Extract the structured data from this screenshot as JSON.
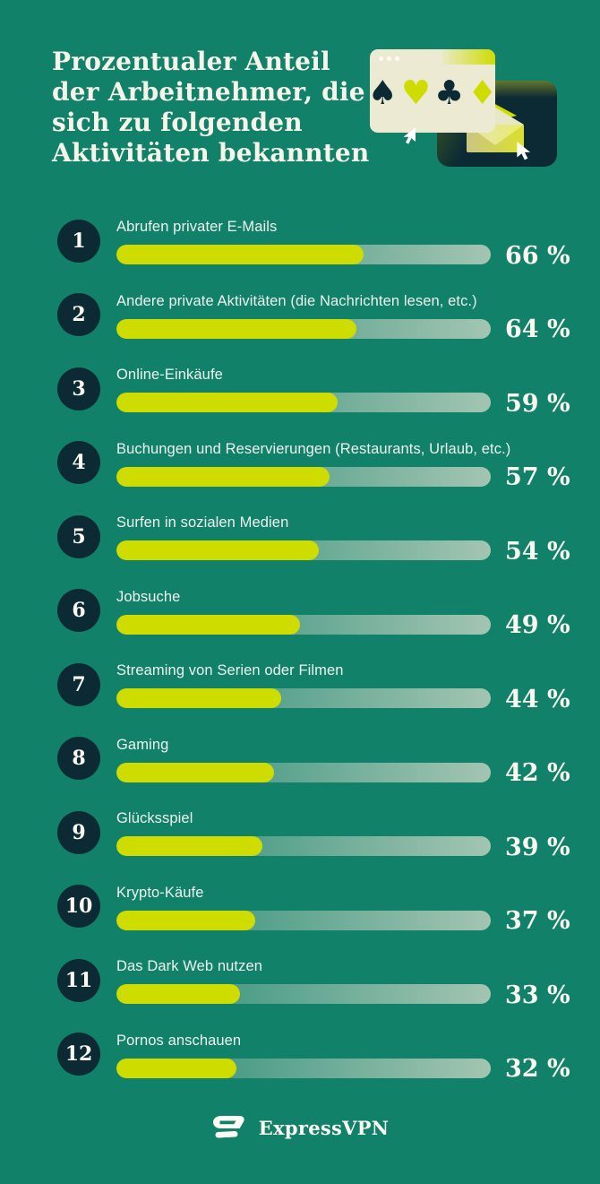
{
  "theme": {
    "background": "#11816A",
    "badge_color": "#0B2A33",
    "bar_fill": "#CEDC00",
    "track_end": "#A3C5B2",
    "title_color": "#F7F5E9",
    "label_color": "#EDF2EE",
    "value_color": "#FAF9F0",
    "window_cream": "#EDEAD3",
    "dark_card": "#0B2A33"
  },
  "header": {
    "title_lines": [
      "Prozentualer Anteil",
      "der Arbeitnehmer, die",
      "sich zu folgenden",
      "Aktivitäten bekannten"
    ]
  },
  "illustration": {
    "suits": [
      {
        "name": "spade-icon",
        "glyph": "♠",
        "color": "#0B2A33"
      },
      {
        "name": "heart-icon",
        "glyph": "♥",
        "color": "#CEDC00"
      },
      {
        "name": "club-icon",
        "glyph": "♣",
        "color": "#0B2A33"
      },
      {
        "name": "diamond-icon",
        "glyph": "♦",
        "color": "#CEDC00"
      }
    ]
  },
  "chart_data": {
    "type": "bar",
    "orientation": "horizontal",
    "xlim": [
      0,
      100
    ],
    "value_suffix": " %",
    "grid": false,
    "legend": false,
    "categories": [
      "Abrufen privater E-Mails",
      "Andere private Aktivitäten (die Nachrichten lesen, etc.)",
      "Online-Einkäufe",
      "Buchungen und Reservierungen (Restaurants, Urlaub, etc.)",
      "Surfen in sozialen Medien",
      "Jobsuche",
      "Streaming von Serien oder Filmen",
      "Gaming",
      "Glücksspiel",
      "Krypto-Käufe",
      "Das Dark Web nutzen",
      "Pornos anschauen"
    ],
    "values": [
      66,
      64,
      59,
      57,
      54,
      49,
      44,
      42,
      39,
      37,
      33,
      32
    ],
    "items": [
      {
        "rank": "1",
        "label": "Abrufen privater E-Mails",
        "value": 66,
        "display_value": "66 %"
      },
      {
        "rank": "2",
        "label": "Andere private Aktivitäten (die Nachrichten lesen, etc.)",
        "value": 64,
        "display_value": "64 %"
      },
      {
        "rank": "3",
        "label": "Online-Einkäufe",
        "value": 59,
        "display_value": "59 %"
      },
      {
        "rank": "4",
        "label": "Buchungen und Reservierungen (Restaurants, Urlaub, etc.)",
        "value": 57,
        "display_value": "57 %"
      },
      {
        "rank": "5",
        "label": "Surfen in sozialen Medien",
        "value": 54,
        "display_value": "54 %"
      },
      {
        "rank": "6",
        "label": "Jobsuche",
        "value": 49,
        "display_value": "49 %"
      },
      {
        "rank": "7",
        "label": "Streaming von Serien oder Filmen",
        "value": 44,
        "display_value": "44 %"
      },
      {
        "rank": "8",
        "label": "Gaming",
        "value": 42,
        "display_value": "42 %"
      },
      {
        "rank": "9",
        "label": "Glücksspiel",
        "value": 39,
        "display_value": "39 %"
      },
      {
        "rank": "10",
        "label": "Krypto-Käufe",
        "value": 37,
        "display_value": "37 %"
      },
      {
        "rank": "11",
        "label": "Das Dark Web nutzen",
        "value": 33,
        "display_value": "33 %"
      },
      {
        "rank": "12",
        "label": "Pornos anschauen",
        "value": 32,
        "display_value": "32 %"
      }
    ]
  },
  "footer": {
    "brand": "ExpressVPN"
  }
}
